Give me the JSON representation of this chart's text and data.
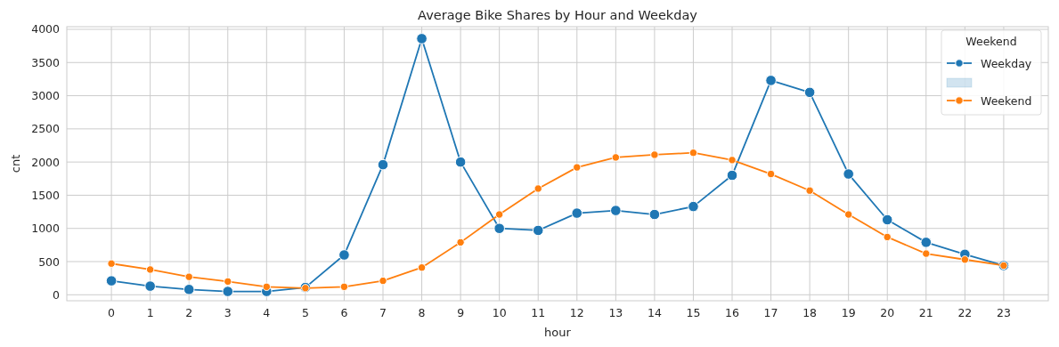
{
  "chart_data": {
    "type": "line",
    "title": "Average Bike Shares by Hour and Weekday",
    "xlabel": "hour",
    "ylabel": "cnt",
    "legend_title": "Weekend",
    "x": [
      0,
      1,
      2,
      3,
      4,
      5,
      6,
      7,
      8,
      9,
      10,
      11,
      12,
      13,
      14,
      15,
      16,
      17,
      18,
      19,
      20,
      21,
      22,
      23
    ],
    "series": [
      {
        "name": "Weekday",
        "color": "#1f77b4",
        "values": [
          210,
          130,
          80,
          50,
          50,
          110,
          600,
          1960,
          3860,
          2000,
          1000,
          970,
          1230,
          1270,
          1210,
          1330,
          1800,
          3230,
          3050,
          1820,
          1130,
          790,
          610,
          440
        ]
      },
      {
        "name": "Weekend",
        "color": "#ff7f0e",
        "values": [
          470,
          380,
          270,
          200,
          120,
          100,
          120,
          210,
          410,
          790,
          1210,
          1600,
          1920,
          2070,
          2110,
          2140,
          2030,
          1820,
          1570,
          1210,
          870,
          620,
          530,
          440
        ]
      }
    ],
    "xlim": [
      -1.15,
      24.15
    ],
    "xticks": [
      0,
      1,
      2,
      3,
      4,
      5,
      6,
      7,
      8,
      9,
      10,
      11,
      12,
      13,
      14,
      15,
      16,
      17,
      18,
      19,
      20,
      21,
      22,
      23
    ],
    "ylim": [
      -90,
      4040
    ],
    "yticks": [
      0,
      500,
      1000,
      1500,
      2000,
      2500,
      3000,
      3500,
      4000
    ],
    "grid": true,
    "legend": "top right",
    "marker": "circle",
    "line_style": "solid"
  }
}
